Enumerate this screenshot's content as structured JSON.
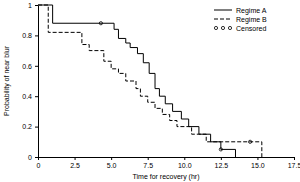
{
  "chart_data": {
    "type": "step",
    "x_label": "Time for recovery (hr)",
    "y_label": "Probability of near blur",
    "xlim": [
      0,
      17.5
    ],
    "ylim": [
      0,
      1
    ],
    "xticks": [
      0,
      2.5,
      {
        "value": 5,
        "label": "5.0"
      },
      7.5,
      {
        "value": 10,
        "label": "10.0"
      },
      12.5,
      {
        "value": 15,
        "label": "15.0"
      },
      17.5
    ],
    "yticks": [
      0,
      0.2,
      0.4,
      0.6,
      0.8,
      1
    ],
    "legend": "top-right",
    "series": [
      {
        "name": "Regime A",
        "color": "#000000",
        "line_style": "solid",
        "x": [
          0,
          1.0,
          5.2,
          5.5,
          6.0,
          6.3,
          6.8,
          7.2,
          7.6,
          8.0,
          8.3,
          8.7,
          9.2,
          9.8,
          10.3,
          11.0,
          11.8,
          12.5,
          13.5
        ],
        "values": [
          1,
          0.88,
          0.84,
          0.78,
          0.75,
          0.72,
          0.68,
          0.62,
          0.55,
          0.45,
          0.4,
          0.35,
          0.3,
          0.25,
          0.2,
          0.15,
          0.1,
          0.05,
          0
        ]
      },
      {
        "name": "Regime B",
        "color": "#000000",
        "line_style": "dashed",
        "x": [
          0,
          0.7,
          3.0,
          3.5,
          4.5,
          5.0,
          5.5,
          6.0,
          6.7,
          7.0,
          7.5,
          8.0,
          8.5,
          9.0,
          9.5,
          10.5,
          11.5,
          15.3
        ],
        "values": [
          1,
          0.82,
          0.74,
          0.7,
          0.63,
          0.58,
          0.55,
          0.5,
          0.45,
          0.4,
          0.36,
          0.32,
          0.28,
          0.24,
          0.2,
          0.15,
          0.1,
          0
        ]
      },
      {
        "name": "Censored",
        "color": "#000000",
        "type": "scatter",
        "marker": "circle",
        "x": [
          4.3,
          12.5,
          14.5
        ],
        "values": [
          0.88,
          0.05,
          0.1
        ]
      }
    ]
  }
}
